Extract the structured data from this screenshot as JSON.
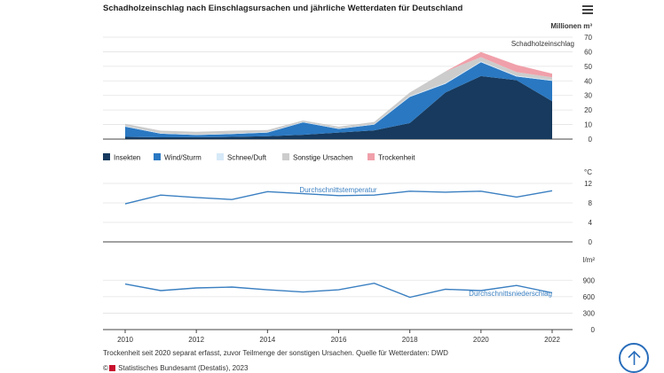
{
  "header": {
    "title": "Schadholzeinschlag nach Einschlagsursachen und jährliche Wetterdaten für Deutschland",
    "menu_icon": "hamburger-menu-icon"
  },
  "footer": {
    "footnote": "Trockenheit seit 2020 separat erfasst, zuvor Teilmenge der sonstigen Ursachen. Quelle für Wetterdaten: DWD",
    "credit_prefix": "©",
    "credit": "Statistisches Bundesamt (Destatis), 2023",
    "scroll_top_icon": "arrow-up-icon"
  },
  "chart_data": [
    {
      "type": "area",
      "stacked": true,
      "annotation": "Schadholzeinschlag",
      "unit": "Millionen m³",
      "x": [
        2010,
        2011,
        2012,
        2013,
        2014,
        2015,
        2016,
        2017,
        2018,
        2019,
        2020,
        2021,
        2022
      ],
      "ylim": [
        0,
        70
      ],
      "yticks": [
        0,
        10,
        20,
        30,
        40,
        50,
        60,
        70
      ],
      "grid": true,
      "legend_position": "bottom-left",
      "series": [
        {
          "name": "Insekten",
          "color": "#173a5e",
          "values": [
            1.5,
            1.2,
            1.3,
            1.5,
            2.0,
            3.0,
            4.5,
            6.0,
            11.0,
            32.0,
            43.3,
            40.5,
            26.0
          ]
        },
        {
          "name": "Wind/Sturm",
          "color": "#2a78c2",
          "values": [
            7.0,
            2.5,
            1.5,
            2.0,
            2.5,
            8.5,
            2.5,
            4.0,
            18.0,
            6.0,
            9.5,
            2.5,
            14.0
          ]
        },
        {
          "name": "Schnee/Duft",
          "color": "#d6e9f8",
          "values": [
            0.5,
            0.3,
            0.3,
            0.3,
            0.3,
            0.3,
            0.3,
            0.3,
            0.5,
            0.5,
            0.5,
            0.5,
            0.5
          ]
        },
        {
          "name": "Sonstige Ursachen",
          "color": "#cccccc",
          "values": [
            1.5,
            1.8,
            1.9,
            2.0,
            1.5,
            1.0,
            1.2,
            1.5,
            2.5,
            8.0,
            3.0,
            2.5,
            2.0
          ]
        },
        {
          "name": "Trockenheit",
          "color": "#f0a0aa",
          "values": [
            0,
            0,
            0,
            0,
            0,
            0,
            0,
            0,
            0,
            0,
            3.5,
            5.0,
            2.5
          ]
        }
      ]
    },
    {
      "type": "line",
      "unit": "°C",
      "x": [
        2010,
        2011,
        2012,
        2013,
        2014,
        2015,
        2016,
        2017,
        2018,
        2019,
        2020,
        2021,
        2022
      ],
      "ylim": [
        0,
        12
      ],
      "yticks": [
        0,
        4,
        8,
        12
      ],
      "grid": true,
      "series": [
        {
          "name": "Durchschnittstemperatur",
          "color": "#3a7fc1",
          "values": [
            7.8,
            9.6,
            9.1,
            8.7,
            10.3,
            9.9,
            9.5,
            9.6,
            10.4,
            10.2,
            10.4,
            9.2,
            10.5
          ]
        }
      ]
    },
    {
      "type": "line",
      "unit": "l/m²",
      "x": [
        2010,
        2011,
        2012,
        2013,
        2014,
        2015,
        2016,
        2017,
        2018,
        2019,
        2020,
        2021,
        2022
      ],
      "xticks": [
        2010,
        2012,
        2014,
        2016,
        2018,
        2020,
        2022
      ],
      "ylim": [
        0,
        1050
      ],
      "yticks": [
        0,
        300,
        600,
        900
      ],
      "grid": true,
      "series": [
        {
          "name": "Durchschnittsniederschlag",
          "color": "#3a7fc1",
          "values": [
            830,
            710,
            760,
            775,
            725,
            685,
            725,
            845,
            590,
            735,
            710,
            805,
            670
          ]
        }
      ]
    }
  ]
}
